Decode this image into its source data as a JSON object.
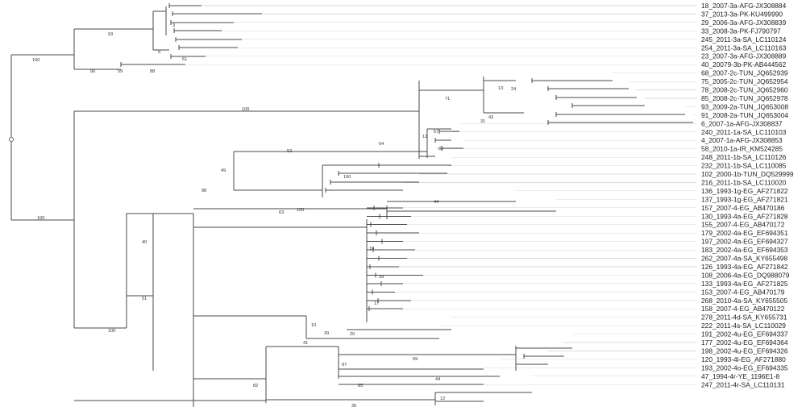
{
  "figure": {
    "type": "phylogenetic-tree",
    "colors": {
      "branch": "#4a4a4a",
      "guide": "#d9d9d9",
      "text": "#222222"
    },
    "labels": [
      "18_2007-3a-AFG-JX308884",
      "37_2013-3a-PK-KU499990",
      "29_2006-3a-AFG-JX308839",
      "33_2008-3a-PK-FJ790797",
      "245_2011-3a-SA_LC110124",
      "254_2011-3a-SA_LC110163",
      "23_2007-3a-AFG-JX308889",
      "40_20079-3b-PK-AB444562",
      "68_2007-2c-TUN_JQ652939",
      "75_2005-2c-TUN_JQ652954",
      "78_2008-2c-TUN_JQ652960",
      "85_2008-2c-TUN_JQ652978",
      "93_2009-2a-TUN_JQ653008",
      "91_2008-2a-TUN_JQ653004",
      "6_2007-1a-AFG-JX308837",
      "240_2011-1a-SA_LC110103",
      "4_2007-1a-AFG-JX308853",
      "58_2010-1a-IR_KM524285",
      "248_2011-1b-SA_LC110126",
      "232_2011-1b-SA_LC110085",
      "102_2000-1b-TUN_DQ529999",
      "216_2011-1b-SA_LC110020",
      "136_1993-1g-EG_AF271822",
      "137_1993-1g-EG_AF271821",
      "157_2007-4-EG_AB470186",
      "130_1993-4a-EG_AF271828",
      "155_2007-4-EG_AB470172",
      "179_2002-4a-EG_EF694351",
      "197_2002-4a-EG_EF694327",
      "183_2002-4a-EG_EF694353",
      "262_2007-4a-SA_KY655498",
      "126_1993-4a-EG_AF271842",
      "108_2006-4a-EG_DQ988079",
      "133_1993-4a-EG_AF271825",
      "153_2007-4-EG_AB470179",
      "268_2010-4a-SA_KY655505",
      "158_2007-4-EG_AB470122",
      "278_2011-4d-SA_KY655731",
      "222_2011-4s-SA_LC110029",
      "191_2002-4u-EG_EF694337",
      "177_2002-4u-EG_EF694364",
      "198_2002-4u-EG_EF694326",
      "120_1993-4l-EG_AF271880",
      "193_2002-4o-EG_EF694335",
      "47_1994-4r-YE_1196E1-8",
      "247_2011-4r-SA_LC110131"
    ],
    "bootstrap": [
      "100",
      "93",
      "90",
      "59",
      "88",
      "9",
      "3",
      "61",
      "100",
      "71",
      "13",
      "24",
      "31",
      "43",
      "52",
      "49",
      "57",
      "12",
      "64",
      "85",
      "100",
      "63",
      "98",
      "32",
      "29",
      "28",
      "100",
      "44",
      "40",
      "51",
      "36",
      "10",
      "17",
      "39",
      "20",
      "41",
      "99",
      "97",
      "44",
      "85",
      "82",
      "100",
      "36",
      "12"
    ]
  }
}
